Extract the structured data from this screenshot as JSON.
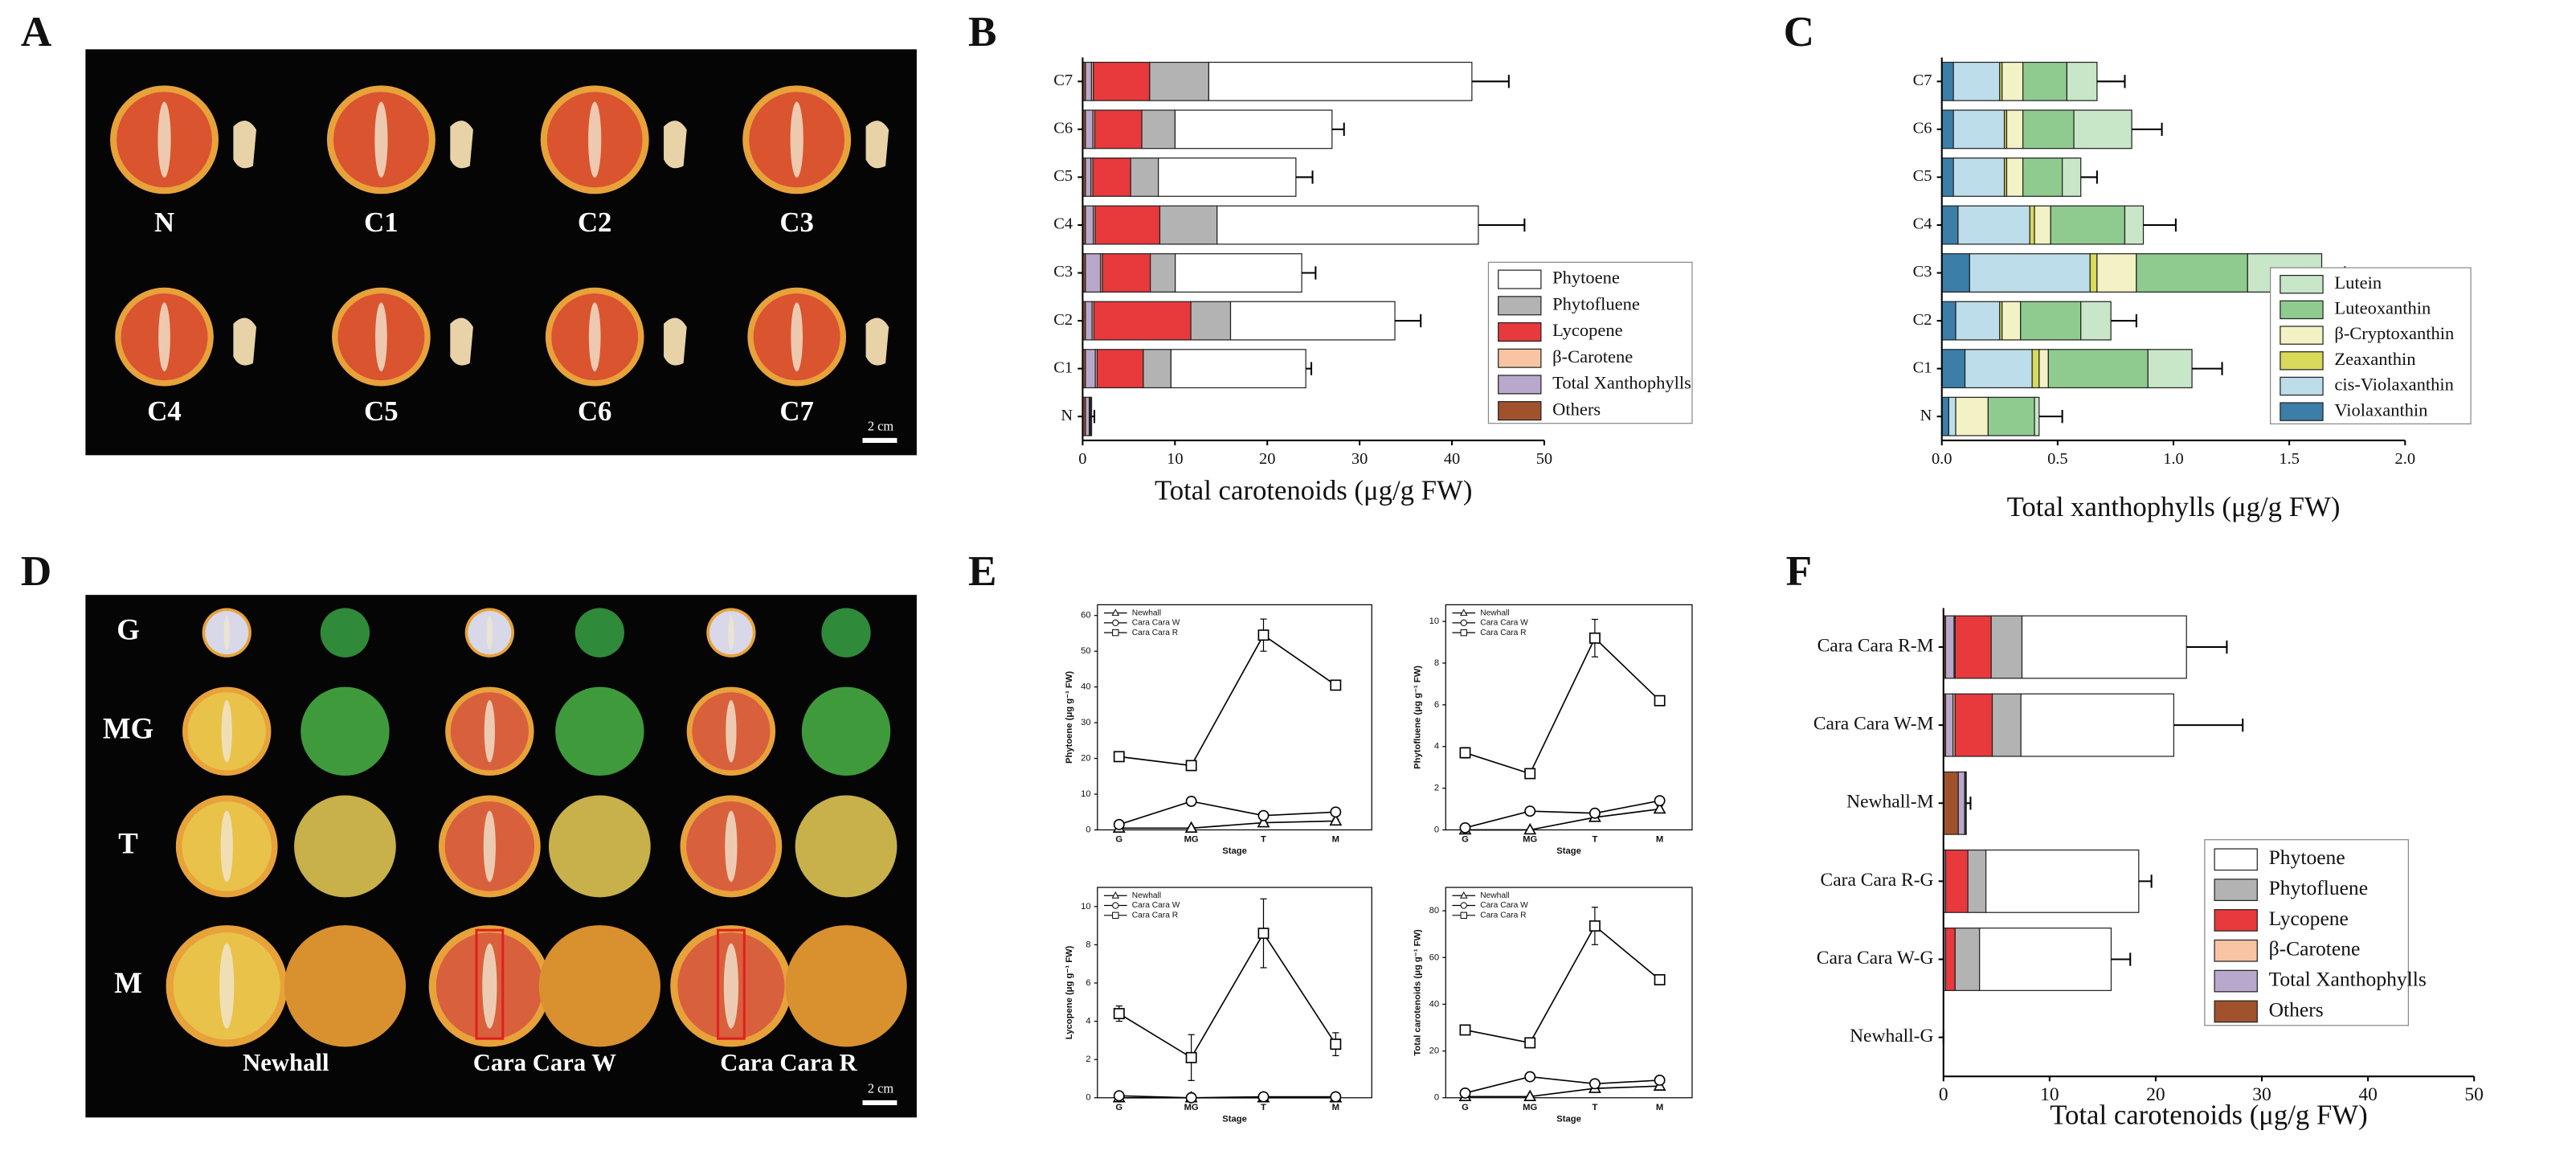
{
  "photo_panels": [
    {
      "panel": "A",
      "labels": [
        "N",
        "C1",
        "C2",
        "C3",
        "C4",
        "C5",
        "C6",
        "C7"
      ],
      "scale_bar": "2 cm"
    },
    {
      "panel": "D",
      "rows": [
        "G",
        "MG",
        "T",
        "M"
      ],
      "columns": [
        "Newhall",
        "Cara Cara W",
        "Cara Cara R"
      ],
      "scale_bar": "2 cm"
    }
  ],
  "chart_data": [
    {
      "type": "barh",
      "panel": "B",
      "categories": [
        "N",
        "C1",
        "C2",
        "C3",
        "C4",
        "C5",
        "C6",
        "C7"
      ],
      "series": [
        {
          "name": "Phytoene",
          "color": "#ffffff",
          "values": [
            0.1,
            14.6,
            17.8,
            13.7,
            28.3,
            14.9,
            17.0,
            28.5
          ]
        },
        {
          "name": "Phytofluene",
          "color": "#b3b3b3",
          "values": [
            0.1,
            3.0,
            4.3,
            2.7,
            6.2,
            3.0,
            3.6,
            6.4
          ]
        },
        {
          "name": "Lycopene",
          "color": "#e8393c",
          "values": [
            0,
            5.0,
            10.5,
            5.2,
            7.0,
            4.1,
            5.1,
            6.1
          ]
        },
        {
          "name": "β-Carotene",
          "color": "#f8c4a4",
          "values": [
            0.05,
            0.2,
            0.2,
            0.2,
            0.2,
            0.2,
            0.2,
            0.2
          ]
        },
        {
          "name": "Total Xanthophylls",
          "color": "#b8a8cc",
          "values": [
            0.42,
            1.07,
            0.72,
            1.63,
            0.86,
            0.6,
            0.81,
            0.66
          ]
        },
        {
          "name": "Others",
          "color": "#a0522d",
          "values": [
            0.3,
            0.3,
            0.3,
            0.3,
            0.3,
            0.3,
            0.3,
            0.3
          ]
        }
      ],
      "errors": [
        0.3,
        0.6,
        2.8,
        1.5,
        5.0,
        1.8,
        1.3,
        4.0
      ],
      "xlabel": "Total carotenoids (μg/g FW)",
      "xlim": [
        0,
        50
      ],
      "xticks": [
        0,
        10,
        20,
        30,
        40,
        50
      ],
      "legend": "lower right"
    },
    {
      "type": "barh",
      "panel": "C",
      "categories": [
        "N",
        "C1",
        "C2",
        "C3",
        "C4",
        "C5",
        "C6",
        "C7"
      ],
      "series": [
        {
          "name": "Lutein",
          "color": "#c8e6c8",
          "values": [
            0.02,
            0.19,
            0.13,
            0.32,
            0.08,
            0.08,
            0.25,
            0.13
          ]
        },
        {
          "name": "Luteoxanthin",
          "color": "#8fcb8f",
          "values": [
            0.2,
            0.43,
            0.26,
            0.48,
            0.32,
            0.17,
            0.22,
            0.19
          ]
        },
        {
          "name": "β-Cryptoxanthin",
          "color": "#f2f2c4",
          "values": [
            0.14,
            0.04,
            0.08,
            0.17,
            0.07,
            0.07,
            0.07,
            0.09
          ]
        },
        {
          "name": "Zeaxanthin",
          "color": "#d9d95a",
          "values": [
            0,
            0.03,
            0.01,
            0.03,
            0.02,
            0.01,
            0.01,
            0.01
          ]
        },
        {
          "name": "cis-Violaxanthin",
          "color": "#bcdde9",
          "values": [
            0.03,
            0.29,
            0.19,
            0.52,
            0.31,
            0.22,
            0.22,
            0.2
          ]
        },
        {
          "name": "Violaxanthin",
          "color": "#3b7ea8",
          "values": [
            0.03,
            0.1,
            0.06,
            0.12,
            0.07,
            0.05,
            0.05,
            0.05
          ]
        }
      ],
      "errors": [
        0.1,
        0.13,
        0.11,
        0.1,
        0.14,
        0.07,
        0.13,
        0.12
      ],
      "xlabel": "Total xanthophylls (μg/g FW)",
      "xlim": [
        0,
        2
      ],
      "xticks": [
        {
          "value": 0,
          "label": "0.0"
        },
        {
          "value": 0.5,
          "label": "0.5"
        },
        {
          "value": 1,
          "label": "1.0"
        },
        {
          "value": 1.5,
          "label": "1.5"
        },
        {
          "value": 2,
          "label": "2.0"
        }
      ],
      "legend": "lower right"
    },
    {
      "type": "line",
      "panel": "E",
      "categories": [
        "G",
        "MG",
        "T",
        "M"
      ],
      "xlabel": "Stage",
      "ylabel": "Phytoene (μg g⁻¹ FW)",
      "ylim": [
        0,
        63
      ],
      "yticks": [
        0,
        10,
        20,
        30,
        40,
        50,
        60
      ],
      "series": [
        {
          "name": "Newhall",
          "marker": "triangle",
          "color": "#000000",
          "values": [
            0.5,
            0.5,
            2,
            2.5
          ],
          "errors": [
            0.3,
            0.3,
            0.5,
            0.5
          ]
        },
        {
          "name": "Cara Cara W",
          "marker": "circle",
          "color": "#000000",
          "values": [
            1.5,
            8,
            4,
            5
          ],
          "errors": [
            1,
            1.2,
            0.8,
            1
          ]
        },
        {
          "name": "Cara Cara R",
          "marker": "square",
          "color": "#000000",
          "values": [
            20.5,
            18,
            54.5,
            40.5
          ],
          "errors": [
            1,
            0.8,
            4.5,
            1.2
          ]
        }
      ]
    },
    {
      "type": "line",
      "categories": [
        "G",
        "MG",
        "T",
        "M"
      ],
      "xlabel": "Stage",
      "ylabel": "Phytofluene (μg g⁻¹ FW)",
      "ylim": [
        0,
        10.8
      ],
      "yticks": [
        0,
        2,
        4,
        6,
        8,
        10
      ],
      "series": [
        {
          "name": "Newhall",
          "marker": "triangle",
          "color": "#000000",
          "values": [
            0,
            0,
            0.6,
            1.0
          ],
          "errors": [
            0,
            0,
            0.1,
            0.15
          ]
        },
        {
          "name": "Cara Cara W",
          "marker": "circle",
          "color": "#000000",
          "values": [
            0.1,
            0.9,
            0.8,
            1.4
          ],
          "errors": [
            0.1,
            0.15,
            0.1,
            0.15
          ]
        },
        {
          "name": "Cara Cara R",
          "marker": "square",
          "color": "#000000",
          "values": [
            3.7,
            2.7,
            9.2,
            6.2
          ],
          "errors": [
            0.25,
            0.15,
            0.9,
            0.15
          ]
        }
      ]
    },
    {
      "type": "line",
      "categories": [
        "G",
        "MG",
        "T",
        "M"
      ],
      "xlabel": "Stage",
      "ylabel": "Lycopene (μg g⁻¹ FW)",
      "ylim": [
        0,
        11
      ],
      "yticks": [
        0,
        2,
        4,
        6,
        8,
        10
      ],
      "series": [
        {
          "name": "Newhall",
          "marker": "triangle",
          "color": "#000000",
          "values": [
            0,
            0,
            0,
            0
          ],
          "errors": [
            0,
            0,
            0,
            0
          ]
        },
        {
          "name": "Cara Cara W",
          "marker": "circle",
          "color": "#000000",
          "values": [
            0.1,
            0,
            0.05,
            0.05
          ],
          "errors": [
            0.05,
            0.05,
            0.05,
            0.05
          ]
        },
        {
          "name": "Cara Cara R",
          "marker": "square",
          "color": "#000000",
          "values": [
            4.4,
            2.1,
            8.6,
            2.8
          ],
          "errors": [
            0.4,
            1.2,
            1.8,
            0.6
          ]
        }
      ]
    },
    {
      "type": "line",
      "categories": [
        "G",
        "MG",
        "T",
        "M"
      ],
      "xlabel": "Stage",
      "ylabel": "Total carotenoids (μg g⁻¹ FW)",
      "ylim": [
        0,
        90
      ],
      "yticks": [
        0,
        20,
        40,
        60,
        80
      ],
      "series": [
        {
          "name": "Newhall",
          "marker": "triangle",
          "color": "#000000",
          "values": [
            0.5,
            0.5,
            4,
            5
          ],
          "errors": [
            0.5,
            0.5,
            1,
            1
          ]
        },
        {
          "name": "Cara Cara W",
          "marker": "circle",
          "color": "#000000",
          "values": [
            2,
            9,
            6,
            7.5
          ],
          "errors": [
            1,
            1.5,
            1,
            1.5
          ]
        },
        {
          "name": "Cara Cara R",
          "marker": "square",
          "color": "#000000",
          "values": [
            29,
            23.5,
            73.5,
            50.5
          ],
          "errors": [
            1.5,
            1.5,
            8,
            1.5
          ]
        }
      ]
    },
    {
      "type": "barh",
      "panel": "F",
      "categories": [
        "Newhall-G",
        "Cara Cara W-G",
        "Cara Cara R-G",
        "Newhall-M",
        "Cara Cara W-M",
        "Cara Cara R-M"
      ],
      "series": [
        {
          "name": "Phytoene",
          "color": "#ffffff",
          "values": [
            0,
            12.4,
            14.4,
            0.05,
            14.4,
            15.5
          ]
        },
        {
          "name": "Phytofluene",
          "color": "#b3b3b3",
          "values": [
            0,
            2.3,
            1.7,
            0.05,
            2.7,
            2.9
          ]
        },
        {
          "name": "Lycopene",
          "color": "#e8393c",
          "values": [
            0,
            0.9,
            2.1,
            0,
            3.5,
            3.4
          ]
        },
        {
          "name": "β-Carotene",
          "color": "#f8c4a4",
          "values": [
            0,
            0,
            0,
            0.05,
            0.2,
            0.1
          ]
        },
        {
          "name": "Total Xanthophylls",
          "color": "#b8a8cc",
          "values": [
            0,
            0.2,
            0.2,
            0.6,
            0.7,
            0.8
          ]
        },
        {
          "name": "Others",
          "color": "#a0522d",
          "values": [
            0,
            0,
            0,
            1.4,
            0.2,
            0.2
          ]
        }
      ],
      "errors": [
        0,
        1.8,
        1.2,
        0.4,
        6.5,
        3.8
      ],
      "xlabel": "Total carotenoids (μg/g FW)",
      "xlim": [
        0,
        50
      ],
      "xticks": [
        0,
        10,
        20,
        30,
        40,
        50
      ],
      "legend": "lower right"
    }
  ]
}
